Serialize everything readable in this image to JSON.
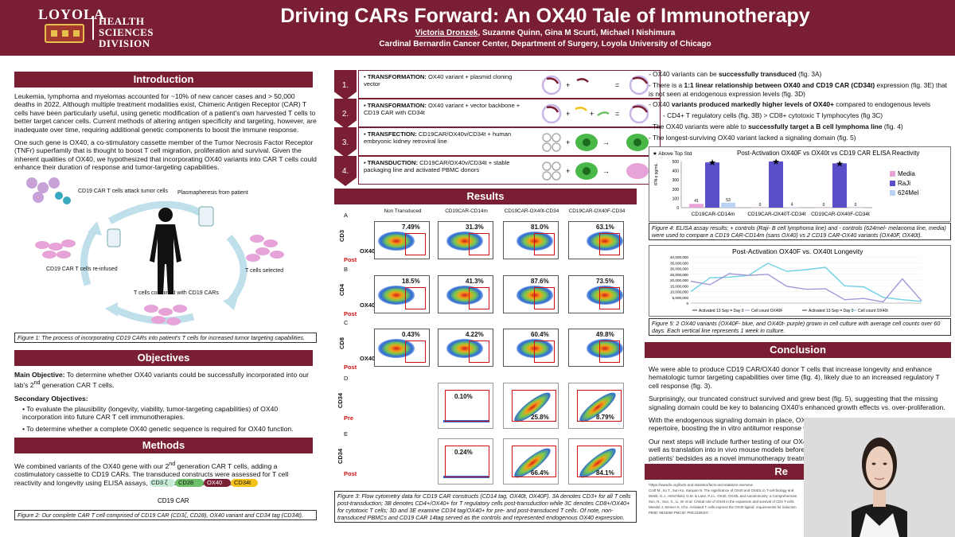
{
  "header": {
    "logo_name": "LOYOLA",
    "logo_sub1": "HEALTH SCIENCES",
    "logo_sub2": "DIVISION",
    "title": "Driving CARs Forward: An OX40 Tale of Immunotherapy",
    "authors_first": "Victoria Dronzek",
    "authors_rest": ", Suzanne Quinn, Gina M Scurti, Michael I Nishimura",
    "affiliation": "Cardinal Bernardin Cancer Center, Department of Surgery, Loyola University of Chicago"
  },
  "intro": {
    "heading": "Introduction",
    "p1": "Leukemia, lymphoma and myelomas accounted for ~10% of new cancer cases and > 50,000 deaths in 2022. Although multiple treatment modalities exist, Chimeric Antigen Receptor (CAR) T cells have been particularly useful, using genetic modification of a patient's own harvested T cells to better target cancer cells. Current methods of altering antigen specificity and targeting, however, are inadequate over time, requiring additional genetic components to boost the immune response.",
    "p2": "One such gene is OX40, a co-stimulatory cassette member of the Tumor Necrosis Factor Receptor (TNFr) superfamily that is thought to boost T cell migration, proliferation and survival. Given the inherent qualities of OX40, we hypothesized that incorporating OX40 variants into CAR T cells could enhance their duration of response and tumor-targeting capabilities.",
    "diagram_labels": {
      "attack": "CD19 CAR T cells attack tumor cells",
      "plasma": "Plasmapheresis from patient",
      "reinfused": "CD19 CAR T cells re-infused",
      "selected": "T cells selected",
      "combined": "T cells combined with CD19 CARs"
    },
    "figure_caption": "Figure 1: The process of incorporating CD19 CARs into patient's T cells for increased tumor targeting capabilities."
  },
  "objectives": {
    "heading": "Objectives",
    "main_label": "Main Objective:",
    "main_text_a": " To determine whether OX40 variants could be successfully incorporated into our lab's 2",
    "main_sup": "nd",
    "main_text_b": " generation CAR T cells.",
    "secondary_label": "Secondary Objectives:",
    "sec1": "To evaluate the plausibility (longevity, viability, tumor-targeting capabilities) of OX40 incorporation into future CAR T cell immunotherapies.",
    "sec2": "To determine whether a complete OX40 genetic sequence is required for OX40 function."
  },
  "methods": {
    "heading": "Methods",
    "text_a": "We combined variants of the OX40 gene with our 2",
    "text_sup": "nd",
    "text_b": " generation CAR T cells, adding a costimulatory cassette to CD19 CARs. The transduced constructs were assessed for T cell reactivity and longevity using ELISA assays, flow cytometry, and cell counts.",
    "construct": [
      "CD3 ζ",
      "CD28",
      "OX40",
      "CD34t"
    ],
    "construct_label": "CD19 CAR",
    "figure_caption": "Figure 2: Our complete CAR T cell comprised of CD19 CAR (CD3ζ, CD28), OX40 variant and CD34 tag (CD34t)."
  },
  "flow": [
    {
      "num": "1.",
      "label": "TRANSFORMATION:",
      "text": " OX40 variant + plasmid cloning vector"
    },
    {
      "num": "2.",
      "label": "TRANSFORMATION:",
      "text": " OX40 variant + vector backbone + CD19 CAR with CD34t"
    },
    {
      "num": "3.",
      "label": "TRANSFECTION:",
      "text": " CD19CAR/OX40v/CD34t + human embryonic kidney retroviral line"
    },
    {
      "num": "4.",
      "label": "TRANSDUCTION:",
      "text": " CD19CAR/OX40v/CD34t + stable packaging line and activated PBMC donors"
    }
  ],
  "results": {
    "heading": "Results",
    "columns": [
      "Non Transduced",
      "CD19CAR-CD14m",
      "CD19CAR-OX40t-CD34",
      "CD19CAR-OX40F-CD34"
    ],
    "rows": [
      {
        "letter": "A",
        "ylabel": "CD3",
        "post": "Post",
        "xlabel": "OX40",
        "values": [
          "7.49%",
          "31.3%",
          "81.0%",
          "63.1%"
        ]
      },
      {
        "letter": "B",
        "ylabel": "CD4",
        "post": "Post",
        "xlabel": "OX40",
        "values": [
          "18.5%",
          "41.3%",
          "87.6%",
          "73.5%"
        ]
      },
      {
        "letter": "C",
        "ylabel": "CD8",
        "post": "Post",
        "xlabel": "OX40",
        "values": [
          "0.43%",
          "4.22%",
          "60.4%",
          "49.8%"
        ]
      }
    ],
    "row_d": {
      "letter": "D",
      "ylabel": "CD34",
      "post": "Pre",
      "values": [
        "0.10%",
        "25.8%",
        "8.79%"
      ]
    },
    "row_e": {
      "letter": "E",
      "ylabel": "CD34",
      "post": "Post",
      "values": [
        "0.24%",
        "66.4%",
        "84.1%"
      ]
    },
    "figure_caption": "Figure 3: Flow cytometry data for CD19 CAR constructs (CD14 tag, OX40t, OX40F). 3A denotes CD3+ for all T cells post-transduction; 3B denotes CD4+/OX40+ for T regulatory cells post-transduction while 3C denotes CD8+/OX40+ for cytotoxic T cells; 3D and 3E examine CD34 tag/OX40+ for pre- and post-transduced T cells. Of note, non-transduced PBMCs and CD19 CAR 14tag served as the controls and represented endogenous OX40 expression."
  },
  "findings": {
    "b1a": "- OX40 variants can be ",
    "b1b": "successfully transduced",
    "b1c": " (fig. 3A)",
    "b2a": "- There is a ",
    "b2b": "1:1 linear relationship between OX40 and CD19 CAR (CD34t)",
    "b2c": " expression (fig. 3E) that is not seen at endogenous expression levels (fig. 3D)",
    "b3a": "- OX40 ",
    "b3b": "variants produced markedly higher levels of OX40+",
    "b3c": " compared to endogenous levels",
    "b3sub": "- CD4+ T regulatory cells (fig. 3B) > CD8+ cytotoxic T lymphocytes (fig 3C)",
    "b4a": "- The OX40 variants were able to ",
    "b4b": "successfully target a B cell lymphoma line",
    "b4c": " (fig. 4)",
    "b5": "- The longest-surviving OX40 variant lacked a signaling domain (fig. 5)"
  },
  "chart_data": [
    {
      "type": "bar",
      "title": "Post-Activation OX40F vs OX40t vs CD19 CAR ELISA Reactivity",
      "categories": [
        "CD19CAR-CD14m",
        "CD19CAR-OX40T-CD34t",
        "CD19CAR-OX40F-CD34t"
      ],
      "series": [
        {
          "name": "Media",
          "values": [
            41,
            0,
            0
          ],
          "labels": [
            "41",
            "0",
            "0"
          ],
          "color": "#e9a3d6"
        },
        {
          "name": "RaJi",
          "values": [
            490,
            500,
            480
          ],
          "labels": [
            "",
            "",
            ""
          ],
          "color": "#5a4fc9"
        },
        {
          "name": "624Mel",
          "values": [
            53,
            4,
            0
          ],
          "labels": [
            "53",
            "4",
            "0"
          ],
          "color": "#b9d3f2"
        }
      ],
      "ylabel": "IFN-γ pg/mL",
      "yticks": [
        "0",
        "100",
        "200",
        "300",
        "400",
        "500"
      ],
      "ylim": [
        0,
        500
      ],
      "legend_position": "right",
      "star_legend": "Above Top Std",
      "caption": "Figure 4: ELISA assay results; + controls (Raji- B cell lymphoma line) and - controls (624mel- melanoma line, media) were used to compare a CD19 CAR-CD14m (sans OX40) vs 2 CD19 CAR-OX40 variants (OX40F, OX40t)."
    },
    {
      "type": "line",
      "title": "Post-Activation OX40F vs. OX40t Longevity",
      "yticks": [
        "0",
        "5,000,000",
        "10,000,000",
        "15,000,000",
        "20,000,000",
        "25,000,000",
        "30,000,000",
        "35,000,000",
        "40,000,000"
      ],
      "ylim": [
        0,
        40000000
      ],
      "legend_items": [
        "Activated 13 Sep = Day 0",
        "Cell count OX40F",
        "Activated 13 Sep = Day 0",
        "Cell count OX40t"
      ],
      "series": [
        {
          "name": "Cell count OX40t",
          "color": "#6fd0e6",
          "values": [
            10000000,
            22000000,
            22500000,
            24000000,
            34500000,
            27500000,
            29000000,
            31000000,
            15000000,
            14000000,
            5000000,
            3000000,
            1500000
          ]
        },
        {
          "name": "Cell count OX40F",
          "color": "#a596d8",
          "values": [
            19000000,
            16000000,
            25500000,
            24000000,
            25000000,
            14500000,
            12000000,
            12500000,
            3000000,
            4000000,
            1000000,
            21000000,
            2000000
          ]
        }
      ],
      "caption": "Figure 5: 2 OX40 variants (OX40F- blue, and OX40t- purple) grown in cell culture with average cell counts over 60 days. Each vertical line represents 1 week in culture."
    }
  ],
  "conclusion": {
    "heading": "Conclusion",
    "p1": "We were able to produce CD19 CAR/OX40 donor T cells that increase longevity and enhance hematologic tumor targeting capabilities over time (fig. 4), likely due to an increased regulatory T cell response (fig. 3).",
    "p2": "Surprisingly, our truncated construct survived and grew best (fig. 5), suggesting that the missing signaling domain could be key to balancing OX40's enhanced growth effects vs. over-proliferation.",
    "p3": "With the endogenous signaling domain in place, OX40 is a promising addition to our CAR repertoire, boosting the in vitro antitumor response while balancing sustained proliferation.",
    "p4": "Our next steps will include further testing of our OX40 variants, as well as translation into in vivo mouse models before bringing it to patients' bedsides as a novel immunotherapy treatment."
  },
  "references": {
    "heading": "Re",
    "lines": [
      "¹https://www.lls.org/facts-and-statistics/facts-and-statistics-overview",
      "Croft M., Ito T., Sun Ko, Sanjuan N. The significance of OX40 and OX40L to T-cell biology and",
      "Webb, G.J., Hirschfield, G.M. & Lane, P.J.L. OX40, OX40L and Autoimmunity: a Comprehensive",
      "Sun, N., Sun, X., Li, W. et al. Critical role of OX40 in the expansion and survival of CD4 T-cells",
      "Mendel J, Steiner N, Cho. Activated T cells express the OX40 ligand: requirements for induction",
      "PMID: 9834090 PMCID: PMC2198107."
    ]
  }
}
